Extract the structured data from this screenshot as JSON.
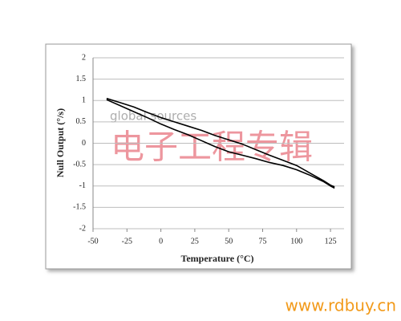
{
  "chart_data": {
    "type": "line",
    "x_label": "Temperature (°C)",
    "y_label": "Null Output (°/s)",
    "x": [
      -40,
      -30,
      -20,
      -10,
      0,
      10,
      20,
      30,
      40,
      50,
      60,
      70,
      80,
      90,
      100,
      110,
      120,
      125,
      128
    ],
    "series": [
      {
        "color": "#000000",
        "values": [
          1.05,
          0.95,
          0.85,
          0.72,
          0.6,
          0.5,
          0.4,
          0.3,
          0.18,
          0.08,
          -0.02,
          -0.15,
          -0.28,
          -0.4,
          -0.52,
          -0.7,
          -0.88,
          -0.98,
          -1.02
        ]
      },
      {
        "color": "#000000",
        "values": [
          1.02,
          0.88,
          0.74,
          0.6,
          0.45,
          0.32,
          0.2,
          0.06,
          -0.08,
          -0.2,
          -0.28,
          -0.36,
          -0.45,
          -0.52,
          -0.62,
          -0.75,
          -0.9,
          -1.0,
          -1.05
        ]
      }
    ],
    "xlim": [
      -50,
      135
    ],
    "xticks": [
      -50,
      -25,
      0,
      25,
      50,
      75,
      100,
      125
    ],
    "ylim": [
      -2,
      2
    ],
    "yticks": [
      -2,
      -1.5,
      -1,
      -0.5,
      0,
      0.5,
      1,
      1.5,
      2
    ],
    "grid": true,
    "annotations": [
      "global sources",
      "电子工程专辑",
      "www.rdbuy.cn"
    ]
  }
}
